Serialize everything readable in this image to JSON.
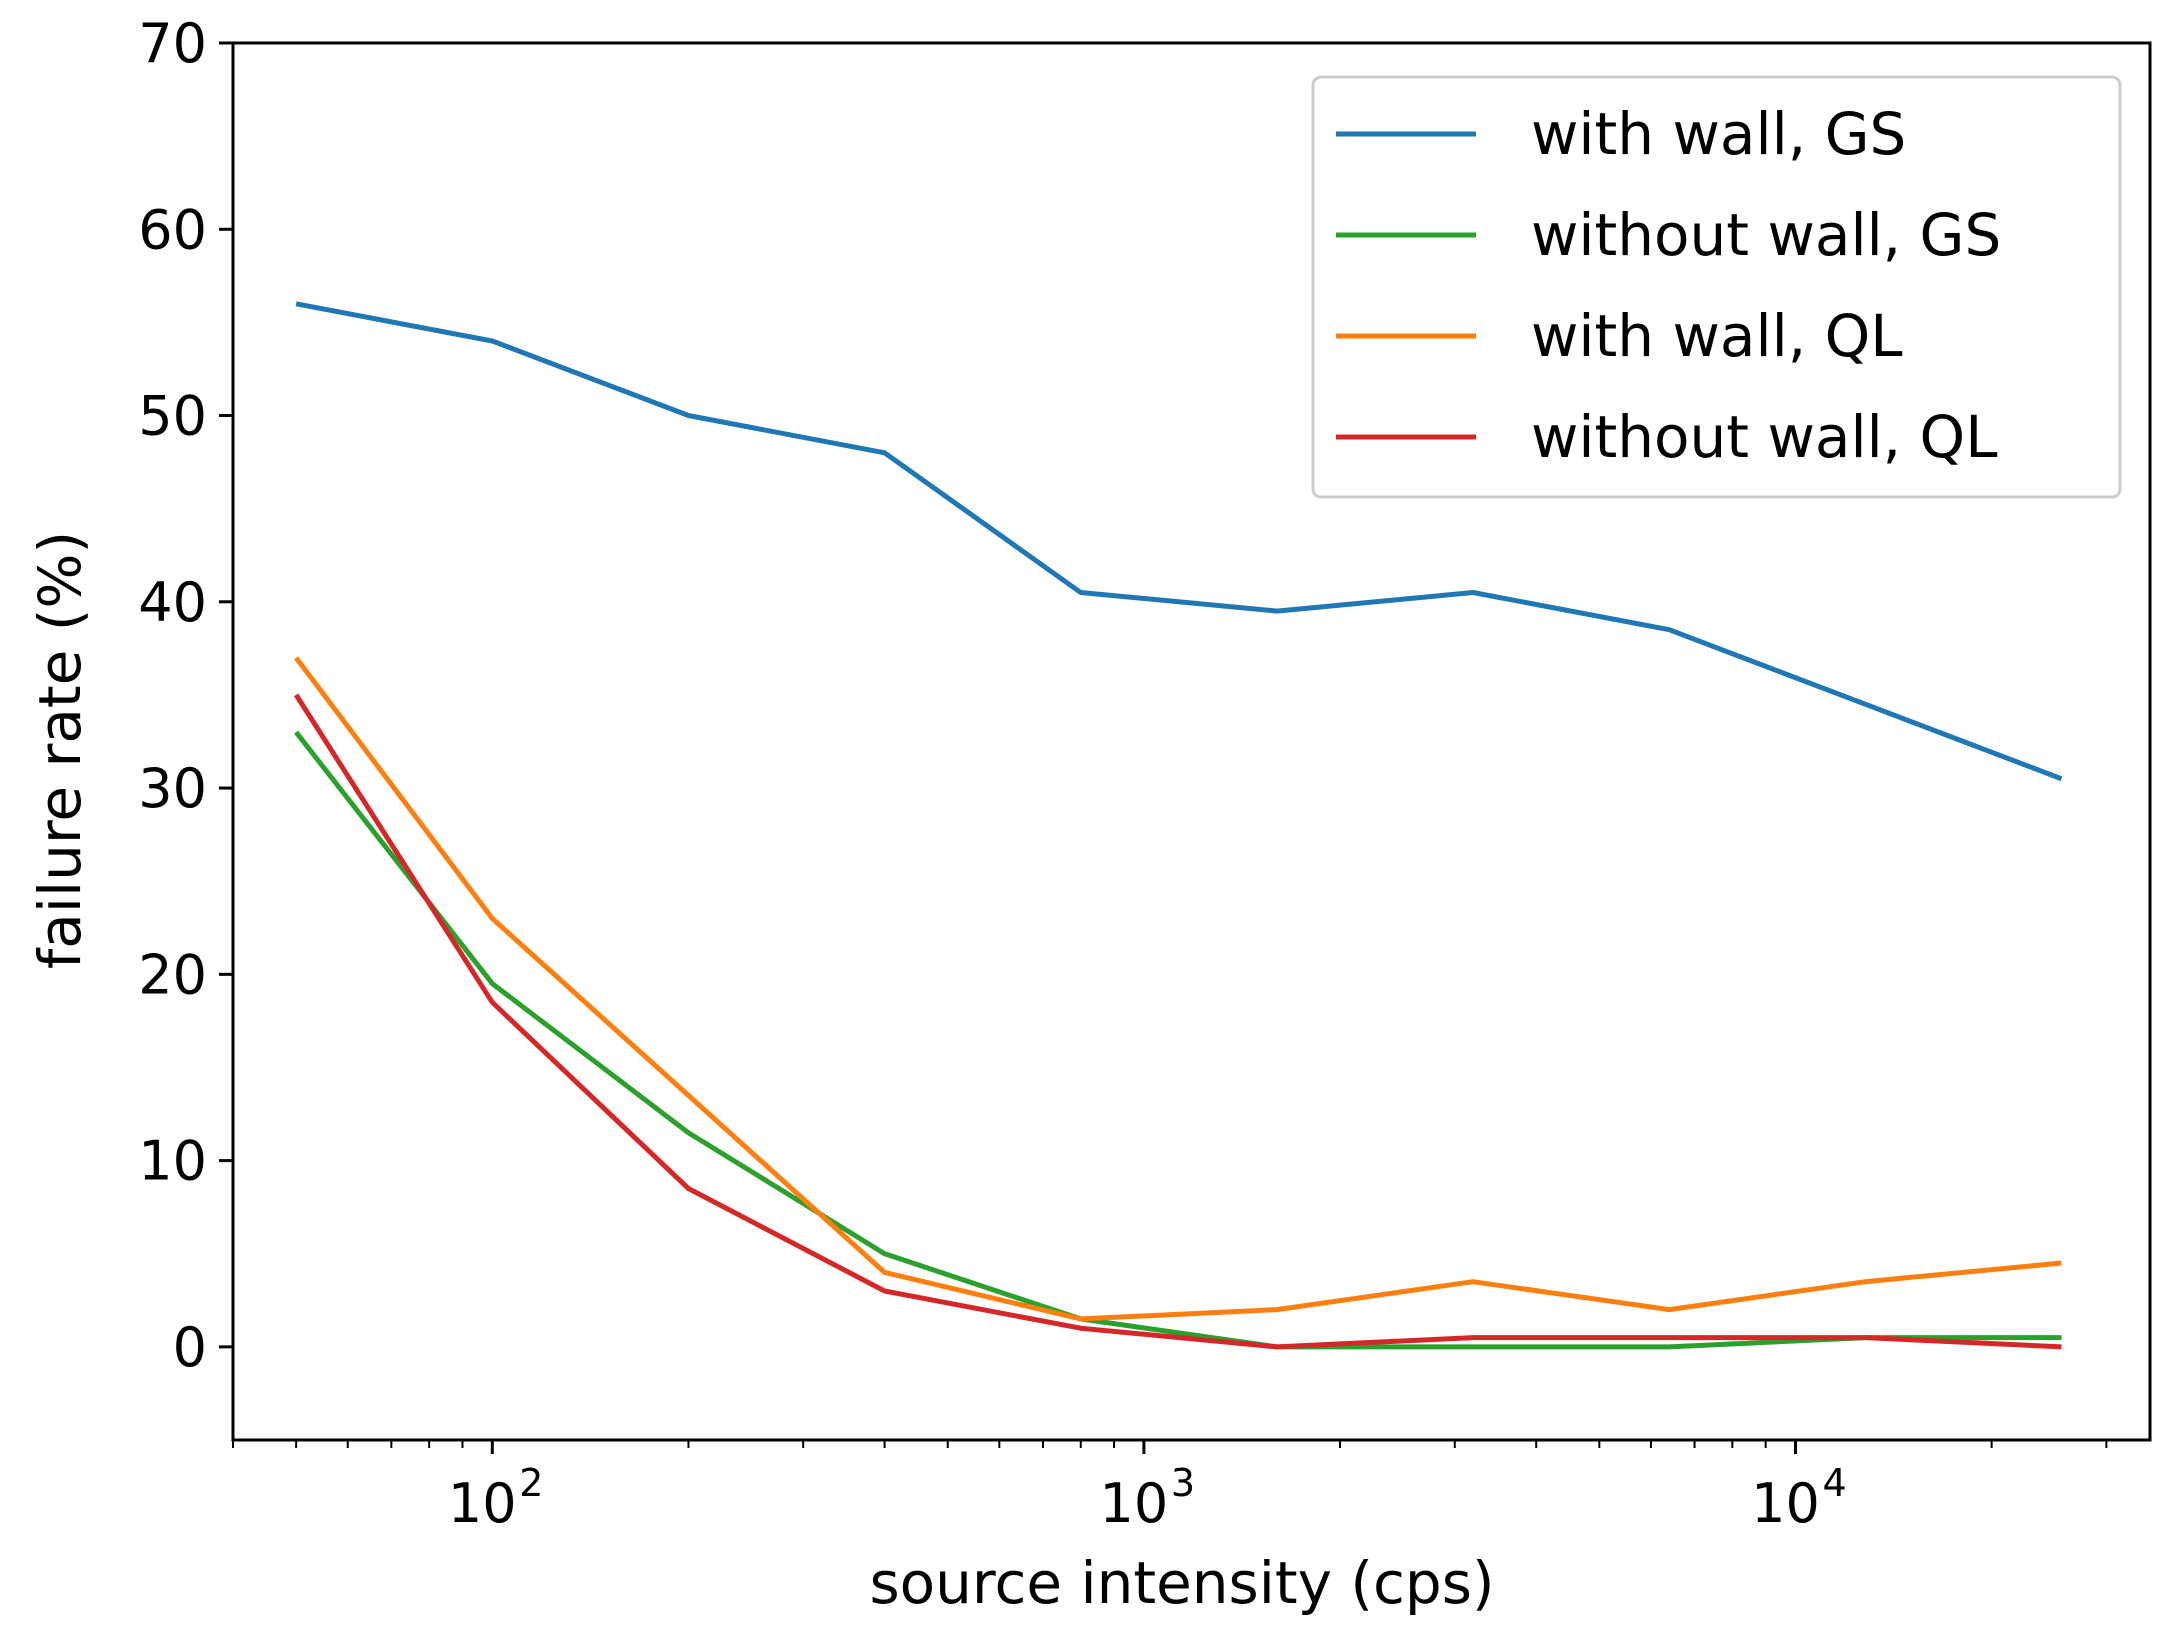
{
  "chart_data": {
    "type": "line",
    "title": "",
    "xlabel": "source intensity (cps)",
    "ylabel": "failure rate (%)",
    "xscale": "log",
    "xlim": [
      40,
      35000
    ],
    "ylim": [
      -5,
      70
    ],
    "yticks": [
      0,
      10,
      20,
      30,
      40,
      50,
      60,
      70
    ],
    "xticks": [
      {
        "value": 100,
        "base": "10",
        "exp": "2"
      },
      {
        "value": 1000,
        "base": "10",
        "exp": "3"
      },
      {
        "value": 10000,
        "base": "10",
        "exp": "4"
      }
    ],
    "x": [
      50,
      100,
      200,
      400,
      800,
      1600,
      3200,
      6400,
      12800,
      25600
    ],
    "legend_position": "top-right",
    "series": [
      {
        "name": "with wall, GS",
        "color": "#1f77b4",
        "values": [
          56,
          54,
          50,
          48,
          40.5,
          39.5,
          40.5,
          38.5,
          34.5,
          30.5
        ]
      },
      {
        "name": "without wall, GS",
        "color": "#2ca02c",
        "values": [
          33,
          19.5,
          11.5,
          5,
          1.5,
          0,
          0,
          0,
          0.5,
          0.5
        ]
      },
      {
        "name": "with wall, QL",
        "color": "#ff7f0e",
        "values": [
          37,
          23,
          13.5,
          4,
          1.5,
          2,
          3.5,
          2,
          3.5,
          4.5
        ]
      },
      {
        "name": "without wall, QL",
        "color": "#d62728",
        "values": [
          35,
          18.5,
          8.5,
          3,
          1,
          0,
          0.5,
          0.5,
          0.5,
          0
        ]
      }
    ]
  }
}
